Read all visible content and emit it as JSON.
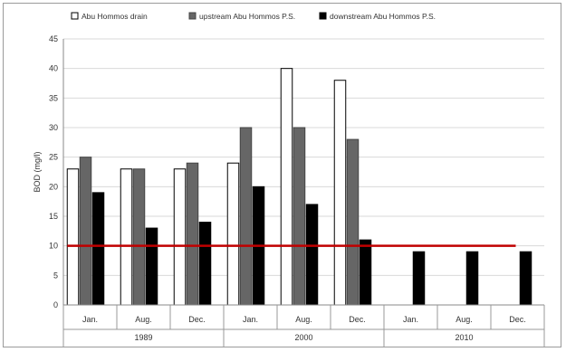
{
  "chart_data": {
    "type": "bar",
    "title": "",
    "xlabel": "",
    "ylabel": "BOD (mg/l)",
    "ylim": [
      0,
      45
    ],
    "yticks": [
      0,
      5,
      10,
      15,
      20,
      25,
      30,
      35,
      40,
      45
    ],
    "grid": "horizontal",
    "legend_position": "top",
    "categories": [
      "Jan.",
      "Aug.",
      "Dec.",
      "Jan.",
      "Aug.",
      "Dec.",
      "Jan.",
      "Aug.",
      "Dec."
    ],
    "groups": [
      {
        "label": "1989",
        "span": [
          0,
          2
        ]
      },
      {
        "label": "2000",
        "span": [
          3,
          5
        ]
      },
      {
        "label": "2010",
        "span": [
          6,
          8
        ]
      }
    ],
    "series": [
      {
        "name": "Abu Hommos drain",
        "color": "#ffffff",
        "stroke": "#000000",
        "values": [
          23,
          23,
          23,
          24,
          40,
          38,
          null,
          null,
          null
        ]
      },
      {
        "name": "upstream Abu Hommos P.S.",
        "color": "#666666",
        "stroke": "#444444",
        "values": [
          25,
          23,
          24,
          30,
          30,
          28,
          null,
          null,
          null
        ]
      },
      {
        "name": "downstream Abu Hommos P.S.",
        "color": "#000000",
        "stroke": "#000000",
        "values": [
          19,
          13,
          14,
          20,
          17,
          11,
          9,
          9,
          9
        ]
      }
    ],
    "reference_line": {
      "value": 10,
      "color": "#c00000"
    }
  }
}
